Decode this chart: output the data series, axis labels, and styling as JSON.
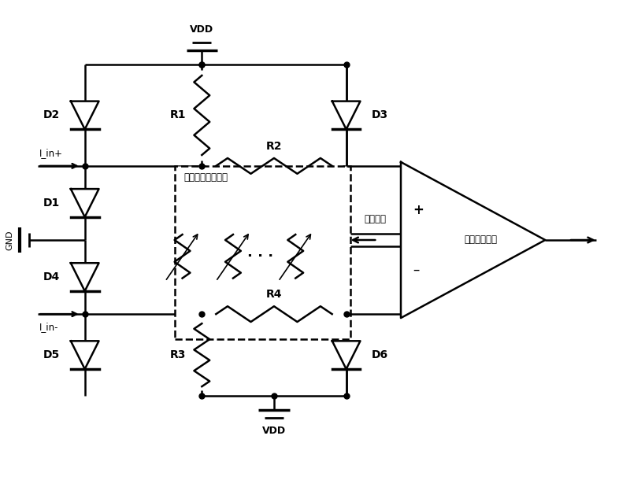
{
  "background": "#ffffff",
  "lw": 1.8,
  "lw_thick": 2.5,
  "dot_size": 5,
  "labels": {
    "VDD_top": "VDD",
    "VDD_bot": "VDD",
    "GND": "GND",
    "I_in_pos": "I_in+",
    "I_in_neg": "I_in-",
    "D1": "D1",
    "D2": "D2",
    "D3": "D3",
    "D4": "D4",
    "D5": "D5",
    "D6": "D6",
    "R1": "R1",
    "R2": "R2",
    "R3": "R3",
    "R4": "R4",
    "ctrl": "控制信号",
    "adj_box": "可调匹配电阵模块",
    "sig_conv": "信号转换模块"
  }
}
